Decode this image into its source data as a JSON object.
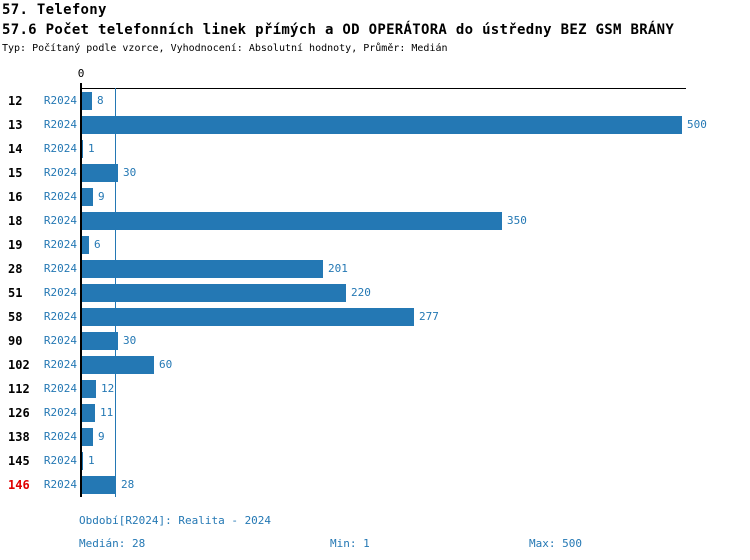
{
  "header": {
    "title": "57. Telefony",
    "subtitle": "57.6 Počet telefonních linek přímých a OD OPERÁTORA do ústředny BEZ GSM BRÁNY",
    "meta": "Typ: Počítaný podle vzorce, Vyhodnocení: Absolutní hodnoty, Průměr: Medián"
  },
  "chart_data": {
    "type": "bar",
    "orientation": "horizontal",
    "title": "57.6 Počet telefonních linek přímých a OD OPERÁTORA do ústředny BEZ GSM BRÁNY",
    "categories": [
      "12",
      "13",
      "14",
      "15",
      "16",
      "18",
      "19",
      "28",
      "51",
      "58",
      "90",
      "102",
      "112",
      "126",
      "138",
      "145",
      "146"
    ],
    "series": [
      {
        "name": "R2024",
        "values": [
          8,
          500,
          1,
          30,
          9,
          350,
          6,
          201,
          220,
          277,
          30,
          60,
          12,
          11,
          9,
          1,
          28
        ]
      }
    ],
    "rows": [
      {
        "id": "12",
        "period": "R2024",
        "value": 8,
        "highlight": false
      },
      {
        "id": "13",
        "period": "R2024",
        "value": 500,
        "highlight": false
      },
      {
        "id": "14",
        "period": "R2024",
        "value": 1,
        "highlight": false
      },
      {
        "id": "15",
        "period": "R2024",
        "value": 30,
        "highlight": false
      },
      {
        "id": "16",
        "period": "R2024",
        "value": 9,
        "highlight": false
      },
      {
        "id": "18",
        "period": "R2024",
        "value": 350,
        "highlight": false
      },
      {
        "id": "19",
        "period": "R2024",
        "value": 6,
        "highlight": false
      },
      {
        "id": "28",
        "period": "R2024",
        "value": 201,
        "highlight": false
      },
      {
        "id": "51",
        "period": "R2024",
        "value": 220,
        "highlight": false
      },
      {
        "id": "58",
        "period": "R2024",
        "value": 277,
        "highlight": false
      },
      {
        "id": "90",
        "period": "R2024",
        "value": 30,
        "highlight": false
      },
      {
        "id": "102",
        "period": "R2024",
        "value": 60,
        "highlight": false
      },
      {
        "id": "112",
        "period": "R2024",
        "value": 12,
        "highlight": false
      },
      {
        "id": "126",
        "period": "R2024",
        "value": 11,
        "highlight": false
      },
      {
        "id": "138",
        "period": "R2024",
        "value": 9,
        "highlight": false
      },
      {
        "id": "145",
        "period": "R2024",
        "value": 1,
        "highlight": false
      },
      {
        "id": "146",
        "period": "R2024",
        "value": 28,
        "highlight": true
      }
    ],
    "xlim": [
      0,
      500
    ],
    "x_ticks": [
      0
    ],
    "x_tick_labels": [
      "0"
    ],
    "median_line_value": 28,
    "grid": false,
    "legend": false,
    "bar_value_labels": true
  },
  "axis": {
    "zero_label": "0"
  },
  "footer": {
    "period_line": "Období[R2024]: Realita - 2024",
    "median": "Medián: 28",
    "min": "Min: 1",
    "max": "Max: 500"
  },
  "colors": {
    "bar": "#2478b4",
    "text_blue": "#2478b4",
    "highlight_red": "#e00000",
    "axis_black": "#000000",
    "background": "#ffffff"
  }
}
